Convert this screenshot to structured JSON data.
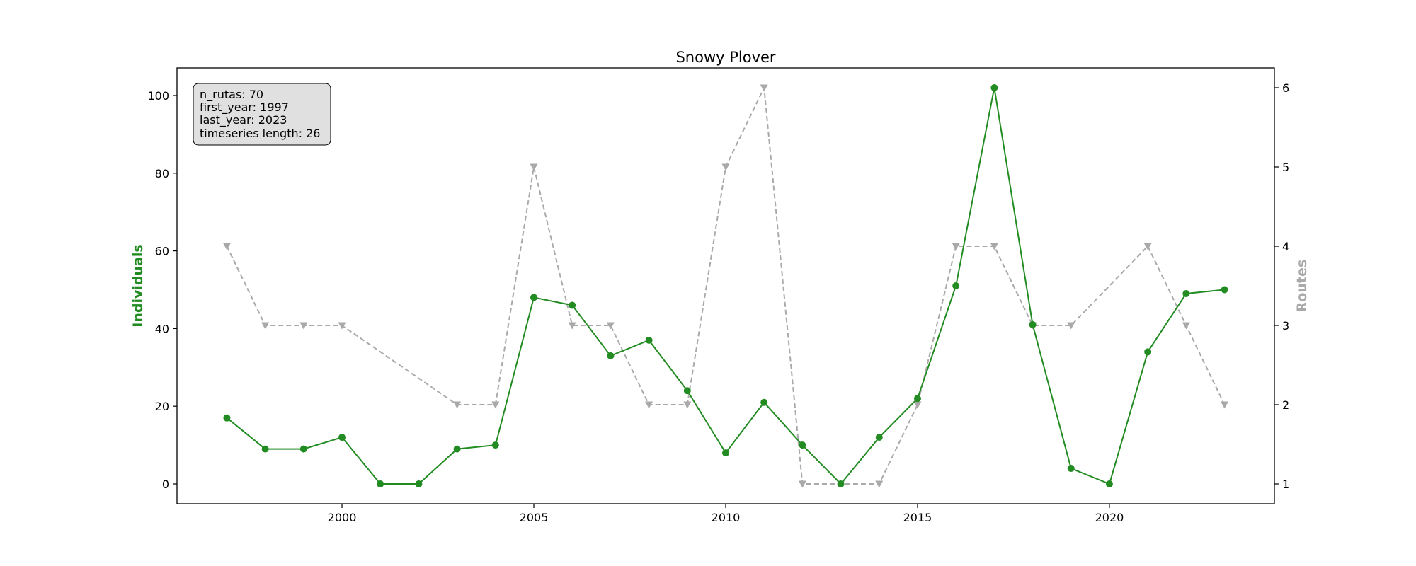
{
  "chart_data": {
    "type": "line",
    "title": "Snowy Plover",
    "ylabel": "Individuals",
    "y2label": "Routes",
    "xlim": [
      1995.7,
      2024.3
    ],
    "ylim": [
      -5.1,
      107.1
    ],
    "y2lim": [
      0.75,
      6.25
    ],
    "xticks": [
      2000,
      2005,
      2010,
      2015,
      2020
    ],
    "yticks": [
      0,
      20,
      40,
      60,
      80,
      100
    ],
    "y2ticks": [
      1,
      2,
      3,
      4,
      5,
      6
    ],
    "grid": false,
    "colors": {
      "individuals": "#228b22",
      "routes": "#a9a9a9",
      "info_box_bg": "#e0e0e0"
    },
    "series": [
      {
        "name": "Individuals",
        "axis": "left",
        "style": "solid",
        "marker": "circle",
        "x": [
          1997,
          1998,
          1999,
          2000,
          2001,
          2002,
          2003,
          2004,
          2005,
          2006,
          2007,
          2008,
          2009,
          2010,
          2011,
          2012,
          2013,
          2014,
          2015,
          2016,
          2017,
          2018,
          2019,
          2020,
          2021,
          2022,
          2023
        ],
        "values": [
          17,
          9,
          9,
          12,
          0,
          0,
          9,
          10,
          48,
          46,
          33,
          37,
          24,
          8,
          21,
          10,
          0,
          12,
          22,
          51,
          102,
          41,
          4,
          0,
          34,
          49,
          50
        ]
      },
      {
        "name": "Routes",
        "axis": "right",
        "style": "dashed",
        "marker": "triangle-down",
        "x": [
          1997,
          1998,
          1999,
          2000,
          2003,
          2004,
          2005,
          2006,
          2007,
          2008,
          2009,
          2010,
          2011,
          2012,
          2013,
          2014,
          2015,
          2016,
          2017,
          2018,
          2019,
          2021,
          2022,
          2023
        ],
        "values": [
          4,
          3,
          3,
          3,
          2,
          2,
          5,
          3,
          3,
          2,
          2,
          5,
          6,
          1,
          1,
          1,
          2,
          4,
          4,
          3,
          3,
          4,
          3,
          2
        ]
      }
    ],
    "info_box": {
      "position": "top-left",
      "lines": [
        "n_rutas: 70",
        "first_year: 1997",
        "last_year: 2023",
        "timeseries length: 26"
      ]
    }
  }
}
